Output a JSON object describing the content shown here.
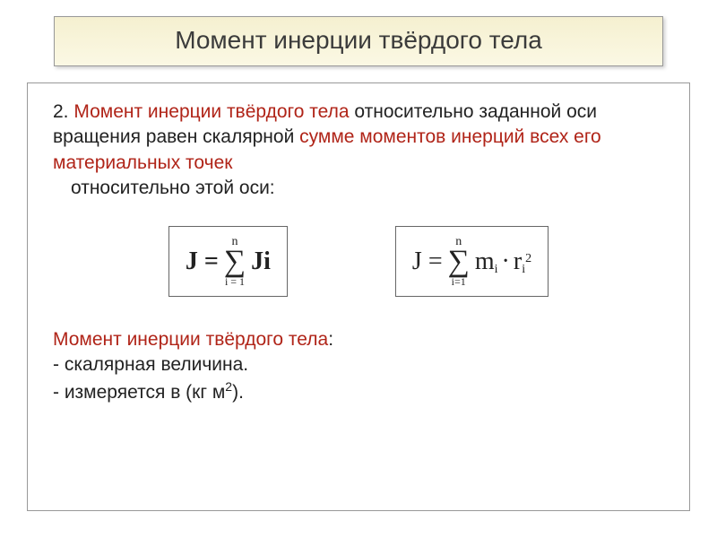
{
  "title": "Момент инерции твёрдого тела",
  "body": {
    "leadNumber": "2. ",
    "leadAccent": "Момент инерции твёрдого тела",
    "leadAfter1": " относительно заданной оси вращения равен скалярной ",
    "leadAccent2": "сумме моментов инерций всех его материальных  точек",
    "leadAfter2": " относительно этой оси:"
  },
  "formula1": {
    "eq": "J =",
    "sumTop": "n",
    "sumBot": "i = 1",
    "term": "Ji"
  },
  "formula2": {
    "eq": "J =",
    "sumTop": "n",
    "sumBot": "i=1",
    "termL": "m",
    "dot": "·",
    "termR": "r",
    "sub": "i",
    "sup": "2"
  },
  "footer": {
    "label": "Момент инерции твёрдого тела",
    "colon": ":",
    "line1": "- скалярная величина.",
    "line2pre": "- измеряется в (кг м",
    "line2sup": "2",
    "line2post": ")."
  }
}
